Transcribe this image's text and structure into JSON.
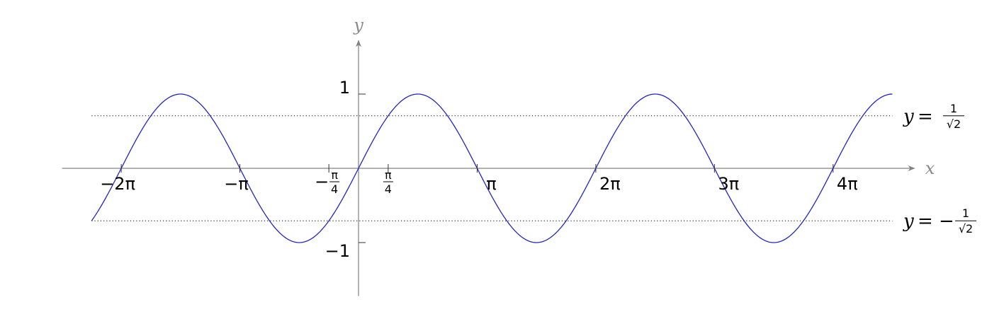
{
  "chart_data": {
    "type": "line",
    "title": "",
    "xlabel": "x",
    "ylabel": "y",
    "xlim": [
      -7.85,
      14.72
    ],
    "ylim": [
      -1.72,
      1.72
    ],
    "grid": false,
    "series": [
      {
        "function": "sin(x)",
        "x_domain": [
          -7.0686,
          14.1372
        ],
        "color": "#2424c8"
      }
    ],
    "reference_lines": [
      {
        "y": 0.7071,
        "style": "dotted",
        "x_domain": [
          -7.0686,
          14.1372
        ]
      },
      {
        "y": -0.7071,
        "style": "dotted",
        "x_domain": [
          -7.0686,
          14.1372
        ]
      }
    ],
    "x_ticks": [
      {
        "value": -6.2832,
        "label": "−2π"
      },
      {
        "value": -3.1416,
        "label": "−π"
      },
      {
        "value": -0.7854,
        "label": "−",
        "num": "π",
        "den": "4"
      },
      {
        "value": 0.7854,
        "label": "",
        "num": "π",
        "den": "4"
      },
      {
        "value": 3.1416,
        "label": "π"
      },
      {
        "value": 6.2832,
        "label": "2π"
      },
      {
        "value": 9.4248,
        "label": "3π"
      },
      {
        "value": 12.5664,
        "label": "4π"
      }
    ],
    "y_ticks": [
      {
        "value": 1,
        "label": "1"
      },
      {
        "value": -1,
        "label": "−1"
      }
    ],
    "annotations": [
      {
        "y": 0.7071,
        "prefix": "y = ",
        "num": "1",
        "den": "√2"
      },
      {
        "y": -0.7071,
        "prefix": "y = −",
        "num": "1",
        "den": "√2"
      }
    ]
  }
}
